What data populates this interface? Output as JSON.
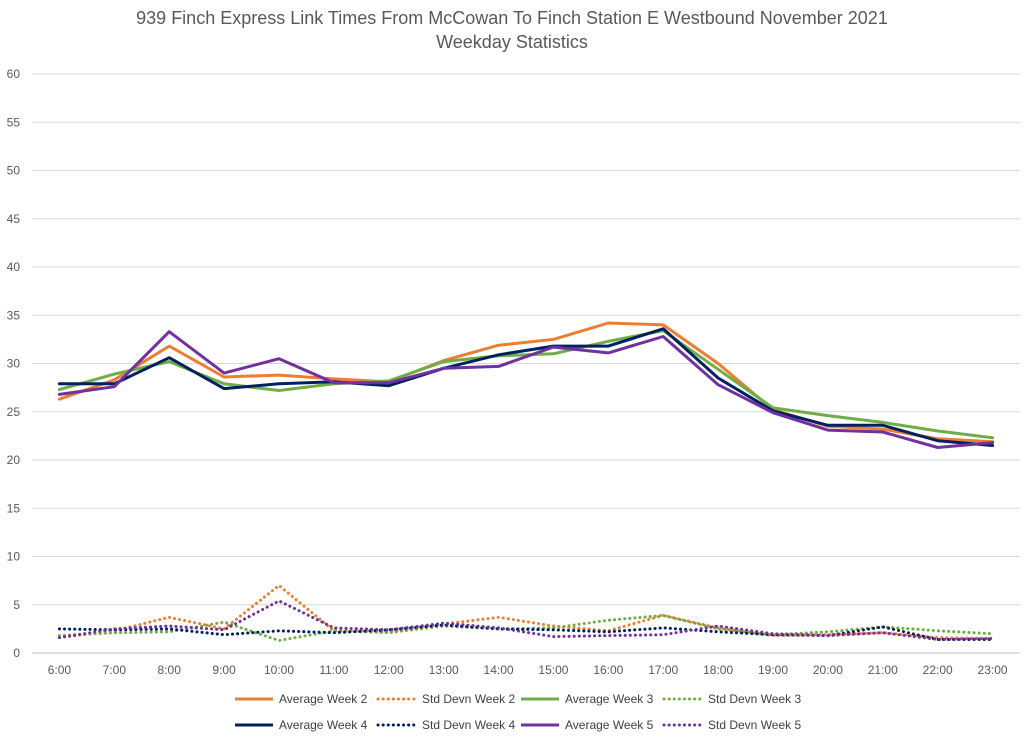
{
  "chart_data": {
    "type": "line",
    "title_line1": "939 Finch Express Link Times From McCowan To Finch Station E Westbound November 2021",
    "title_line2": "Weekday Statistics",
    "ylim": [
      0,
      60
    ],
    "yticks": [
      0,
      5,
      10,
      15,
      20,
      25,
      30,
      35,
      40,
      45,
      50,
      55,
      60
    ],
    "grid": true,
    "legend_position": "bottom",
    "categories": [
      "6:00",
      "7:00",
      "8:00",
      "9:00",
      "10:00",
      "11:00",
      "12:00",
      "13:00",
      "14:00",
      "15:00",
      "16:00",
      "17:00",
      "18:00",
      "19:00",
      "20:00",
      "21:00",
      "22:00",
      "23:00"
    ],
    "series": [
      {
        "name": "Average Week 2",
        "color": "#ED7D31",
        "style": "solid",
        "values": [
          26.3,
          28.3,
          31.8,
          28.6,
          28.8,
          28.4,
          28.1,
          30.3,
          31.9,
          32.5,
          34.2,
          34.0,
          30.0,
          25.2,
          23.5,
          23.2,
          22.2,
          21.9
        ]
      },
      {
        "name": "Std Devn Week 2",
        "color": "#ED7D31",
        "style": "dotted",
        "values": [
          1.6,
          2.3,
          3.7,
          2.5,
          7.0,
          2.3,
          2.2,
          3.0,
          3.7,
          2.8,
          2.3,
          3.9,
          2.6,
          1.8,
          1.9,
          2.1,
          1.6,
          1.5
        ]
      },
      {
        "name": "Average Week 3",
        "color": "#70AD47",
        "style": "solid",
        "values": [
          27.3,
          28.9,
          30.2,
          27.9,
          27.2,
          27.9,
          28.2,
          30.2,
          30.8,
          31.0,
          32.3,
          33.4,
          29.4,
          25.4,
          24.6,
          23.9,
          23.0,
          22.3
        ]
      },
      {
        "name": "Std Devn Week 3",
        "color": "#70AD47",
        "style": "dotted",
        "values": [
          1.8,
          2.1,
          2.2,
          3.2,
          1.3,
          2.3,
          2.1,
          2.8,
          2.5,
          2.6,
          3.4,
          3.9,
          2.5,
          1.9,
          2.2,
          2.7,
          2.3,
          2.0
        ]
      },
      {
        "name": "Average Week 4",
        "color": "#002060",
        "style": "solid",
        "values": [
          27.9,
          27.9,
          30.6,
          27.4,
          27.9,
          28.1,
          27.7,
          29.5,
          30.9,
          31.8,
          31.8,
          33.6,
          28.5,
          25.1,
          23.6,
          23.6,
          22.0,
          21.5
        ]
      },
      {
        "name": "Std Devn Week 4",
        "color": "#002060",
        "style": "dotted",
        "values": [
          2.5,
          2.4,
          2.5,
          1.9,
          2.3,
          2.1,
          2.4,
          2.9,
          2.5,
          2.4,
          2.2,
          2.6,
          2.2,
          1.9,
          1.8,
          2.7,
          1.4,
          1.4
        ]
      },
      {
        "name": "Average Week 5",
        "color": "#7030A0",
        "style": "solid",
        "values": [
          26.8,
          27.6,
          33.3,
          29.0,
          30.5,
          28.0,
          28.0,
          29.5,
          29.7,
          31.7,
          31.1,
          32.8,
          27.8,
          24.9,
          23.1,
          22.9,
          21.3,
          21.8
        ]
      },
      {
        "name": "Std Devn Week 5",
        "color": "#7030A0",
        "style": "dotted",
        "values": [
          1.6,
          2.5,
          2.8,
          2.4,
          5.4,
          2.6,
          2.4,
          3.1,
          2.6,
          1.7,
          1.8,
          1.9,
          2.8,
          2.0,
          1.8,
          2.1,
          1.4,
          1.5
        ]
      }
    ]
  }
}
